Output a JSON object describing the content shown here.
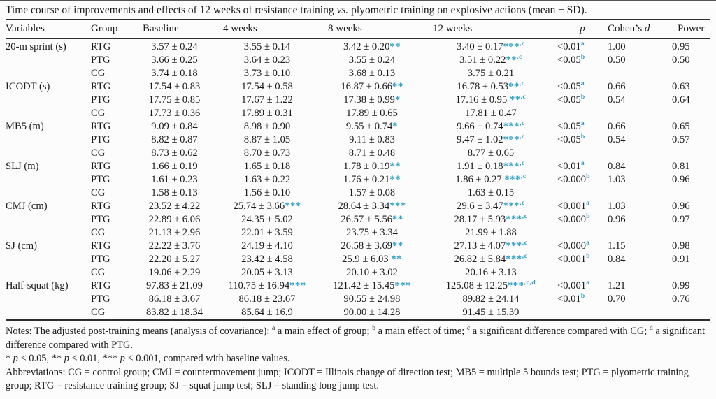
{
  "colors": {
    "marker": "#2b9fc7",
    "ink": "#1b1b1b",
    "rule": "#2e2e2e"
  },
  "title": "Time course of improvements and effects of 12 weeks of resistance training ~vs.~ plyometric training on explosive actions (mean ± SD).",
  "table": {
    "headers": [
      "Variables",
      "Group",
      "Baseline",
      "4 weeks",
      "8 weeks",
      "12 weeks",
      "~p~",
      "Cohen’s ~d~",
      "Power"
    ],
    "rows": [
      {
        "variable": "20-m sprint (s)",
        "group": "RTG",
        "cells": [
          [
            "3.57 ± 0.24",
            "",
            ""
          ],
          [
            "3.55 ± 0.14",
            "",
            ""
          ],
          [
            "3.42 ± 0.20",
            "**",
            ""
          ],
          [
            "3.40 ± 0.17",
            "***",
            ",c"
          ],
          [
            "<0.01",
            "",
            "a"
          ]
        ],
        "d": "1.00",
        "power": "0.95"
      },
      {
        "variable": "",
        "group": "PTG",
        "cells": [
          [
            "3.66 ± 0.25",
            "",
            ""
          ],
          [
            "3.64 ± 0.23",
            "",
            ""
          ],
          [
            "3.55 ± 0.24",
            "",
            ""
          ],
          [
            "3.51 ± 0.22",
            "**",
            ",c"
          ],
          [
            "<0.05",
            "",
            "b"
          ]
        ],
        "d": "0.50",
        "power": "0.50"
      },
      {
        "variable": "",
        "group": "CG",
        "cells": [
          [
            "3.74 ± 0.18",
            "",
            ""
          ],
          [
            "3.73 ± 0.10",
            "",
            ""
          ],
          [
            "3.68 ± 0.13",
            "",
            ""
          ],
          [
            "3.75 ± 0.21",
            "",
            ""
          ],
          [
            "",
            "",
            ""
          ]
        ],
        "d": "",
        "power": ""
      },
      {
        "variable": "ICODT (s)",
        "group": "RTG",
        "cells": [
          [
            "17.54 ± 0.83",
            "",
            ""
          ],
          [
            "17.54 ± 0.58",
            "",
            ""
          ],
          [
            "16.87 ± 0.66",
            "**",
            ""
          ],
          [
            "16.78 ± 0.53",
            "**",
            ",c"
          ],
          [
            "<0.05",
            "",
            "a"
          ]
        ],
        "d": "0.66",
        "power": "0.63"
      },
      {
        "variable": "",
        "group": "PTG",
        "cells": [
          [
            "17.75 ± 0.85",
            "",
            ""
          ],
          [
            "17.67 ± 1.22",
            "",
            ""
          ],
          [
            "17.38 ± 0.99",
            "*",
            ""
          ],
          [
            "17.16 ± 0.95 ",
            "**",
            ",c"
          ],
          [
            "<0.05",
            "",
            "b"
          ]
        ],
        "d": "0.54",
        "power": "0.64"
      },
      {
        "variable": "",
        "group": "CG",
        "cells": [
          [
            "17.73 ± 0.36",
            "",
            ""
          ],
          [
            "17.89 ± 0.31",
            "",
            ""
          ],
          [
            "17.89 ± 0.65",
            "",
            ""
          ],
          [
            "17.81 ± 0.47",
            "",
            ""
          ],
          [
            "",
            "",
            ""
          ]
        ],
        "d": "",
        "power": ""
      },
      {
        "variable": "MB5 (m)",
        "group": "RTG",
        "cells": [
          [
            "9.09 ± 0.84",
            "",
            ""
          ],
          [
            "8.98 ± 0.90",
            "",
            ""
          ],
          [
            "9.55 ± 0.74",
            "*",
            ""
          ],
          [
            "9.66 ± 0.74",
            "***",
            ",c"
          ],
          [
            "<0.05",
            "",
            "a"
          ]
        ],
        "d": "0.66",
        "power": "0.65"
      },
      {
        "variable": "",
        "group": "PTG",
        "cells": [
          [
            "8.82 ± 0.87",
            "",
            ""
          ],
          [
            "8.87 ± 1.05",
            "",
            ""
          ],
          [
            "9.11 ± 0.83",
            "",
            ""
          ],
          [
            "9.47 ± 1.02",
            "***",
            ",c"
          ],
          [
            "<0.05",
            "",
            "b"
          ]
        ],
        "d": "0.54",
        "power": "0.57"
      },
      {
        "variable": "",
        "group": "CG",
        "cells": [
          [
            "8.73 ± 0.62",
            "",
            ""
          ],
          [
            "8.70 ± 0.73",
            "",
            ""
          ],
          [
            "8.71 ± 0.48",
            "",
            ""
          ],
          [
            "8.77 ± 0.65",
            "",
            ""
          ],
          [
            "",
            "",
            ""
          ]
        ],
        "d": "",
        "power": ""
      },
      {
        "variable": "SLJ (m)",
        "group": "RTG",
        "cells": [
          [
            "1.66 ± 0.19",
            "",
            ""
          ],
          [
            "1.65 ± 0.18",
            "",
            ""
          ],
          [
            "1.78 ± 0.19",
            "**",
            ""
          ],
          [
            "1.91 ± 0.18",
            "***",
            ",c"
          ],
          [
            "<0.01",
            "",
            "a"
          ]
        ],
        "d": "0.84",
        "power": "0.81"
      },
      {
        "variable": "",
        "group": "PTG",
        "cells": [
          [
            "1.61 ± 0.23",
            "",
            ""
          ],
          [
            "1.63 ± 0.22",
            "",
            ""
          ],
          [
            "1.76 ± 0.21",
            "**",
            ""
          ],
          [
            "1.86 ± 0.27 ",
            "***",
            ",c"
          ],
          [
            "<0.000",
            "",
            "b"
          ]
        ],
        "d": "1.03",
        "power": "0.96"
      },
      {
        "variable": "",
        "group": "CG",
        "cells": [
          [
            "1.58 ± 0.13",
            "",
            ""
          ],
          [
            "1.56 ± 0.10",
            "",
            ""
          ],
          [
            "1.57 ± 0.08",
            "",
            ""
          ],
          [
            "1.63 ± 0.15",
            "",
            ""
          ],
          [
            "",
            "",
            ""
          ]
        ],
        "d": "",
        "power": ""
      },
      {
        "variable": "CMJ (cm)",
        "group": "RTG",
        "cells": [
          [
            "23.52 ± 4.22",
            "",
            ""
          ],
          [
            "25.74 ± 3.66",
            "***",
            ""
          ],
          [
            "28.64 ± 3.34",
            "***",
            ""
          ],
          [
            "29.6 ± 3.47",
            "***",
            ",c"
          ],
          [
            "<0.001",
            "",
            "a"
          ]
        ],
        "d": "1.03",
        "power": "0.96"
      },
      {
        "variable": "",
        "group": "PTG",
        "cells": [
          [
            "22.89 ± 6.06",
            "",
            ""
          ],
          [
            "24.35 ± 5.02",
            "",
            ""
          ],
          [
            "26.57 ± 5.56",
            "**",
            ""
          ],
          [
            "28.17 ± 5.93",
            "***",
            ",c"
          ],
          [
            "<0.000",
            "",
            "b"
          ]
        ],
        "d": "0.96",
        "power": "0.97"
      },
      {
        "variable": "",
        "group": "CG",
        "cells": [
          [
            "21.13 ± 2.96",
            "",
            ""
          ],
          [
            "22.01 ± 3.59",
            "",
            ""
          ],
          [
            "23.75 ± 3.34",
            "",
            ""
          ],
          [
            "21.99 ± 1.88",
            "",
            ""
          ],
          [
            "",
            "",
            ""
          ]
        ],
        "d": "",
        "power": ""
      },
      {
        "variable": "SJ (cm)",
        "group": "RTG",
        "cells": [
          [
            "22.22 ± 3.76",
            "",
            ""
          ],
          [
            "24.19 ± 4.10",
            "",
            ""
          ],
          [
            "26.58 ± 3.69",
            "**",
            ""
          ],
          [
            "27.13 ± 4.07",
            "***",
            ",c"
          ],
          [
            "<0.000",
            "",
            "a"
          ]
        ],
        "d": "1.15",
        "power": "0.98"
      },
      {
        "variable": "",
        "group": "PTG",
        "cells": [
          [
            "22.20 ± 5.27",
            "",
            ""
          ],
          [
            "23.42 ± 4.58",
            "",
            ""
          ],
          [
            "25.9 ± 6.03 ",
            "**",
            ""
          ],
          [
            "26.82 ± 5.84",
            "***",
            ",c"
          ],
          [
            "<0.001",
            "",
            "b"
          ]
        ],
        "d": "0.84",
        "power": "0.91"
      },
      {
        "variable": "",
        "group": "CG",
        "cells": [
          [
            "19.06 ± 2.29",
            "",
            ""
          ],
          [
            "20.05 ± 3.13",
            "",
            ""
          ],
          [
            "20.10 ± 3.02",
            "",
            ""
          ],
          [
            "20.16 ± 3.13",
            "",
            ""
          ],
          [
            "",
            "",
            ""
          ]
        ],
        "d": "",
        "power": ""
      },
      {
        "variable": "Half-squat (kg)",
        "group": "RTG",
        "cells": [
          [
            "97.83 ± 21.09",
            "",
            ""
          ],
          [
            "110.75 ± 16.94",
            "***",
            ""
          ],
          [
            "121.42 ± 15.45",
            "***",
            ""
          ],
          [
            "125.08 ± 12.25",
            "***",
            ",c,d"
          ],
          [
            "<0.001",
            "",
            "a"
          ]
        ],
        "d": "1.21",
        "power": "0.99"
      },
      {
        "variable": "",
        "group": "PTG",
        "cells": [
          [
            "86.18 ± 3.67",
            "",
            ""
          ],
          [
            "86.18 ± 23.67",
            "",
            ""
          ],
          [
            "90.55 ± 24.98",
            "",
            ""
          ],
          [
            "89.82 ± 24.14",
            "",
            ""
          ],
          [
            "<0.01",
            "",
            "b"
          ]
        ],
        "d": "0.70",
        "power": "0.76"
      },
      {
        "variable": "",
        "group": "CG",
        "cells": [
          [
            "83.82 ± 18.34",
            "",
            ""
          ],
          [
            "85.64 ± 16.9",
            "",
            ""
          ],
          [
            "90.00 ± 14.28",
            "",
            ""
          ],
          [
            "91.45 ± 15.39",
            "",
            ""
          ],
          [
            "",
            "",
            ""
          ]
        ],
        "d": "",
        "power": ""
      }
    ]
  },
  "notes": [
    "Notes: The adjusted post-training means (analysis of covariance): ^a^ a main effect of group; ^b^ a main effect of time; ^c^ a significant difference compared with CG; ^d^ a significant difference compared with PTG.",
    "* ~p~ < 0.05, ** ~p~ < 0.01, *** ~p~ < 0.001, compared with baseline values.",
    "Abbreviations: CG = control group; CMJ = countermovement jump; ICODT = Illinois change of direction test; MB5 = multiple 5 bounds test; PTG = plyometric training group; RTG = resistance training group; SJ = squat jump test; SLJ = standing long jump test."
  ]
}
